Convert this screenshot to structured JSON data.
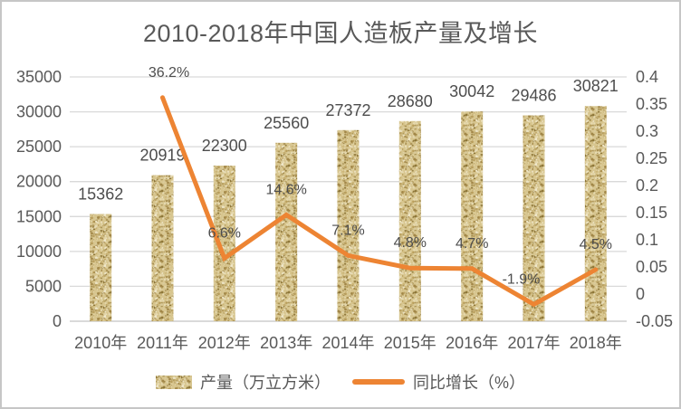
{
  "chart_data": {
    "type": "combo-bar-line",
    "title": "2010-2018年中国人造板产量及增长",
    "categories": [
      "2010年",
      "2011年",
      "2012年",
      "2013年",
      "2014年",
      "2015年",
      "2016年",
      "2017年",
      "2018年"
    ],
    "series": [
      {
        "name": "产量（万立方米）",
        "type": "bar",
        "axis": "left",
        "values": [
          15362,
          20919,
          22300,
          25560,
          27372,
          28680,
          30042,
          29486,
          30821
        ],
        "value_labels": [
          "15362",
          "20919",
          "22300",
          "25560",
          "27372",
          "28680",
          "30042",
          "29486",
          "30821"
        ],
        "color": "#d7c58e"
      },
      {
        "name": "同比增长（%）",
        "type": "line",
        "axis": "right",
        "values": [
          null,
          0.362,
          0.066,
          0.146,
          0.071,
          0.048,
          0.047,
          -0.019,
          0.045
        ],
        "value_labels": [
          "",
          "36.2%",
          "6.6%",
          "14.6%",
          "7.1%",
          "4.8%",
          "4.7%",
          "-1.9%",
          "4.5%"
        ],
        "color": "#ed8433"
      }
    ],
    "left_axis": {
      "min": 0,
      "max": 35000,
      "step": 5000,
      "tick_labels": [
        "35000",
        "30000",
        "25000",
        "20000",
        "15000",
        "10000",
        "5000",
        "0"
      ]
    },
    "right_axis": {
      "min": -0.05,
      "max": 0.4,
      "step": 0.05,
      "tick_labels": [
        "0.4",
        "0.35",
        "0.3",
        "0.25",
        "0.2",
        "0.15",
        "0.1",
        "0.05",
        "0",
        "-0.05"
      ]
    },
    "legend": {
      "bar_label": "产量（万立方米）",
      "line_label": "同比增长（%）"
    },
    "grid": "horizontal",
    "colors": {
      "bar_base": "#d7c58e",
      "bar_speckles": [
        "#b59a58",
        "#c5ad6c",
        "#a18647",
        "#e5d8ad",
        "#efe7ca",
        "#8d7638",
        "#d9cb9b"
      ],
      "line": "#ed8433",
      "gridline": "#d9d9d9",
      "axis_line": "#c3c3c3",
      "text": "#595959"
    }
  }
}
